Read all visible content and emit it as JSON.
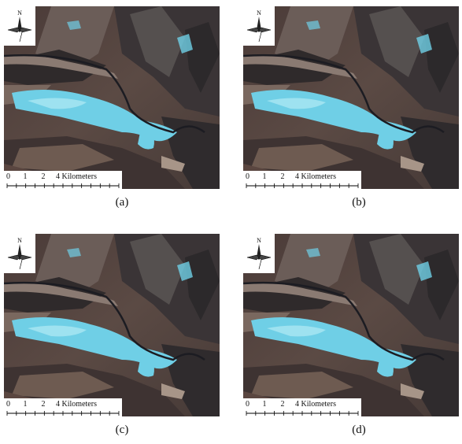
{
  "panels": [
    {
      "caption": "(a)",
      "north": "N",
      "scale_labels": [
        "0",
        "1",
        "2",
        "4 Kilometers"
      ]
    },
    {
      "caption": "(b)",
      "north": "N",
      "scale_labels": [
        "0",
        "1",
        "2",
        "4 Kilometers"
      ]
    },
    {
      "caption": "(c)",
      "north": "N",
      "scale_labels": [
        "0",
        "1",
        "2",
        "4 Kilometers"
      ]
    },
    {
      "caption": "(d)",
      "north": "N",
      "scale_labels": [
        "0",
        "1",
        "2",
        "4 Kilometers"
      ]
    }
  ]
}
